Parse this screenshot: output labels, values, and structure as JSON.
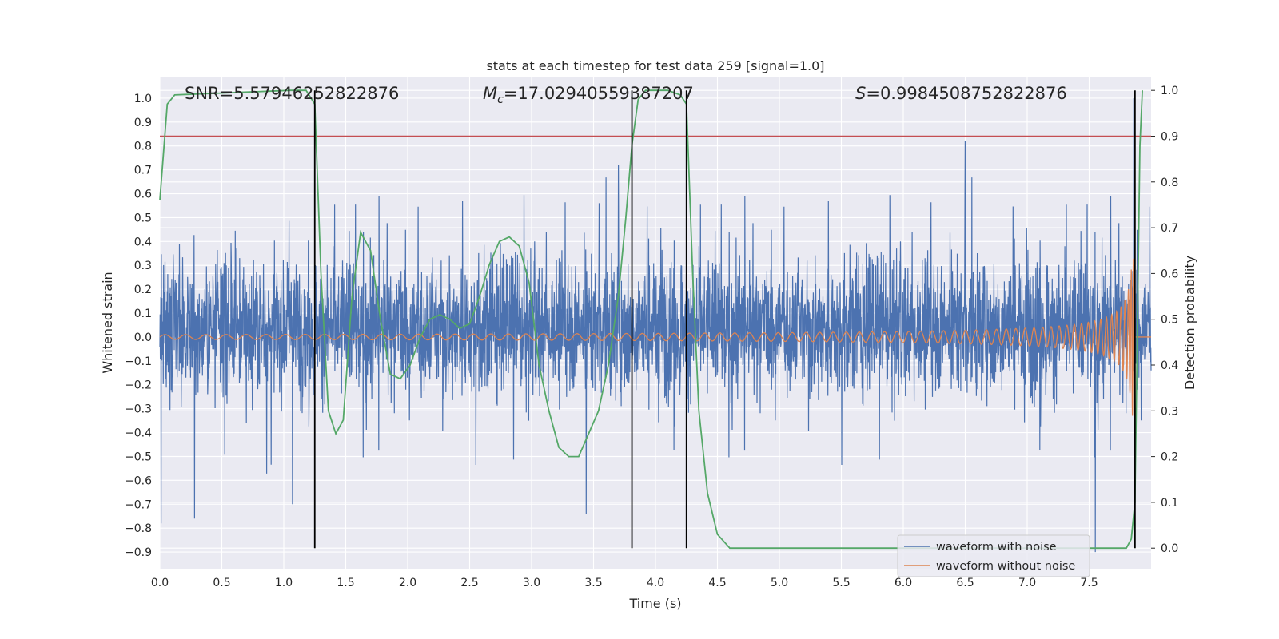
{
  "chart_data": {
    "type": "line",
    "title": "stats at each timestep for test data 259 [signal=1.0]",
    "xlabel": "Time (s)",
    "ylabel": "Whitened strain",
    "y2label": "Detection probability",
    "xlim": [
      0.0,
      8.0
    ],
    "ylim": [
      -0.97,
      1.09
    ],
    "y2lim": [
      -0.045,
      1.03
    ],
    "x_ticks": [
      "0.0",
      "0.5",
      "1.0",
      "1.5",
      "2.0",
      "2.5",
      "3.0",
      "3.5",
      "4.0",
      "4.5",
      "5.0",
      "5.5",
      "6.0",
      "6.5",
      "7.0",
      "7.5"
    ],
    "y_ticks": [
      "1.0",
      "0.9",
      "0.8",
      "0.7",
      "0.6",
      "0.5",
      "0.4",
      "0.3",
      "0.2",
      "0.1",
      "0.0",
      "−0.1",
      "−0.2",
      "−0.3",
      "−0.4",
      "−0.5",
      "−0.6",
      "−0.7",
      "−0.8",
      "−0.9"
    ],
    "y2_ticks": [
      "1.0",
      "0.9",
      "0.8",
      "0.7",
      "0.6",
      "0.5",
      "0.4",
      "0.3",
      "0.2",
      "0.1",
      "0.0"
    ],
    "annotations": {
      "snr": "SNR=5.57946252822876",
      "mc_symbol": "M",
      "mc_sub": "c",
      "mc_value": "=17.02940559387207",
      "s_symbol": "S",
      "s_value": "=0.9984508752822876"
    },
    "legend": {
      "position": "lower-right",
      "entries": [
        "waveform with noise",
        "waveform without noise"
      ]
    },
    "colors": {
      "noise": "#4c72b0",
      "clean": "#dd8452",
      "probability": "#55a868",
      "threshold": "#c44e52",
      "markers": "#000000",
      "axes_bg": "#eaeaf2",
      "grid": "#ffffff"
    },
    "threshold_y2": 0.9,
    "vertical_markers_x": [
      1.25,
      3.81,
      4.25,
      7.87
    ],
    "noise_series": {
      "name": "waveform with noise",
      "x_range": [
        0.0,
        8.0
      ],
      "typical_range": [
        -0.3,
        0.4
      ],
      "spike_x": [
        0.01,
        0.28,
        1.07,
        3.44,
        3.7,
        6.5,
        7.55,
        7.86
      ],
      "spike_y": [
        -0.78,
        -0.76,
        -0.7,
        -0.74,
        0.72,
        0.82,
        -0.9,
        1.0
      ]
    },
    "clean_series": {
      "name": "waveform without noise",
      "type": "chirp",
      "merger_x": 7.87,
      "start_amplitude": 0.01,
      "peak_amplitude": 0.33
    },
    "probability_series": {
      "name": "Detection probability",
      "x": [
        0.0,
        0.06,
        0.12,
        1.05,
        1.18,
        1.25,
        1.3,
        1.36,
        1.42,
        1.48,
        1.55,
        1.62,
        1.7,
        1.78,
        1.86,
        1.94,
        2.02,
        2.1,
        2.18,
        2.26,
        2.34,
        2.42,
        2.5,
        2.58,
        2.66,
        2.74,
        2.82,
        2.9,
        2.98,
        3.06,
        3.14,
        3.22,
        3.3,
        3.38,
        3.46,
        3.54,
        3.62,
        3.7,
        3.76,
        3.81,
        3.86,
        3.92,
        4.0,
        4.1,
        4.2,
        4.25,
        4.3,
        4.35,
        4.42,
        4.5,
        4.6,
        4.7,
        7.8,
        7.84,
        7.87,
        7.89,
        7.91,
        7.93
      ],
      "y": [
        0.76,
        0.97,
        0.99,
        1.0,
        1.0,
        0.97,
        0.6,
        0.3,
        0.25,
        0.28,
        0.55,
        0.69,
        0.65,
        0.5,
        0.38,
        0.37,
        0.4,
        0.46,
        0.5,
        0.51,
        0.5,
        0.48,
        0.49,
        0.55,
        0.62,
        0.67,
        0.68,
        0.66,
        0.58,
        0.4,
        0.3,
        0.22,
        0.2,
        0.2,
        0.25,
        0.3,
        0.4,
        0.55,
        0.72,
        0.88,
        0.98,
        1.0,
        1.0,
        1.0,
        0.99,
        0.97,
        0.6,
        0.3,
        0.12,
        0.03,
        0.0,
        0.0,
        0.0,
        0.02,
        0.1,
        0.5,
        0.88,
        1.0
      ]
    }
  }
}
